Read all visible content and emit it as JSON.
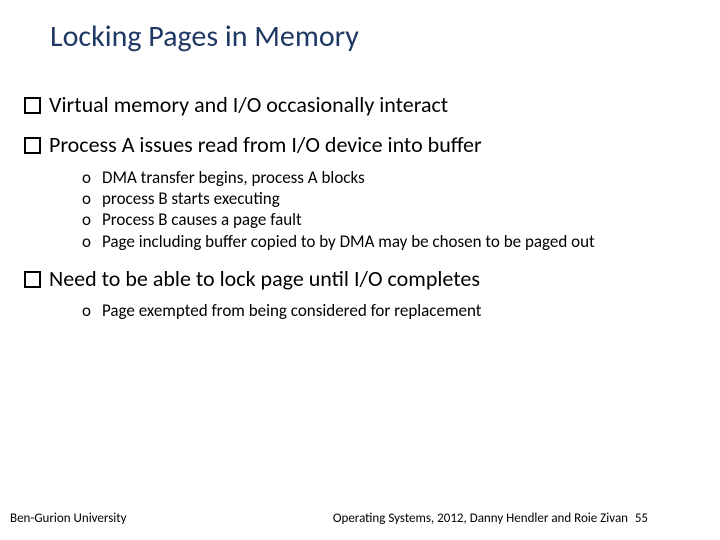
{
  "slide": {
    "title": "Locking  Pages in Memory",
    "title_color": "#1f3864",
    "title_fontsize": 30,
    "body_fontsize": 22,
    "sub_fontsize": 17,
    "background_color": "#ffffff",
    "bullets": [
      {
        "text": "Virtual memory and I/O occasionally interact",
        "sub": []
      },
      {
        "text": "Process A issues read from I/O device into buffer",
        "sub": [
          "DMA transfer begins, process A blocks",
          "process B starts executing",
          "Process B causes a page fault",
          "Page including buffer copied to by DMA may be chosen to be paged out"
        ]
      },
      {
        "text": "Need to be able to lock page until I/O completes",
        "sub": [
          "Page exempted from being considered for replacement"
        ]
      }
    ],
    "footer_left": "Ben-Gurion University",
    "footer_right": "Operating Systems, 2012, Danny Hendler and Roie Zivan",
    "page_number": "55"
  }
}
